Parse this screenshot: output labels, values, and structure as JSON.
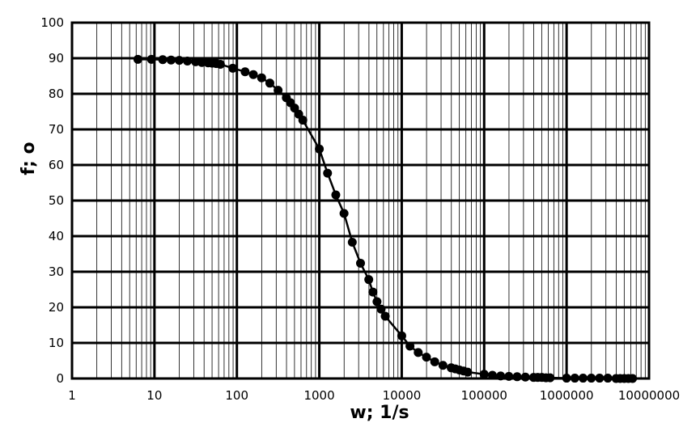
{
  "chart_data": {
    "type": "scatter",
    "xlabel": "w; 1/s",
    "ylabel": "f; o",
    "x_scale": "log",
    "xlim": [
      1,
      10000000
    ],
    "ylim": [
      0,
      100
    ],
    "y_ticks": [
      "0",
      "10",
      "20",
      "30",
      "40",
      "50",
      "60",
      "70",
      "80",
      "90",
      "100"
    ],
    "x_ticks": [
      "1",
      "10",
      "100",
      "1000",
      "10000",
      "100000",
      "1000000",
      "10000000"
    ],
    "grid": true,
    "marker": "circle",
    "line": "connected",
    "colors": {
      "series": "#000000",
      "grid": "#000000",
      "background": "#ffffff"
    },
    "series": [
      {
        "x": [
          6.3,
          9.2,
          12.6,
          15.9,
          20,
          25.1,
          31.6,
          37.6,
          44.7,
          50.1,
          56.2,
          63.1,
          89.1,
          125.9,
          158.5,
          199.5,
          251.2,
          316.2,
          398.1,
          446.7,
          501.2,
          562.3,
          631,
          1000,
          1259,
          1585,
          1995,
          2512,
          3162,
          3981,
          4467,
          5012,
          5623,
          6310,
          10000,
          12589,
          15849,
          19953,
          25119,
          31623,
          39811,
          44668,
          50119,
          56234,
          63096,
          100000,
          125893,
          158489,
          199526,
          251189,
          316228,
          398107,
          446684,
          501187,
          562341,
          630957,
          1000000,
          1258925,
          1584893,
          1995262,
          2511886,
          3162278,
          3981072,
          4466836,
          5011872,
          5623413,
          6309573
        ],
        "y": [
          89.7,
          89.7,
          89.6,
          89.5,
          89.4,
          89.2,
          89,
          88.8,
          88.7,
          88.6,
          88.5,
          88.3,
          87.2,
          86.2,
          85.4,
          84.5,
          83,
          81,
          78.9,
          77.5,
          76,
          74.3,
          72.6,
          64.5,
          57.7,
          51.6,
          46.4,
          38.3,
          32.4,
          27.8,
          24.3,
          21.6,
          19.5,
          17.5,
          12,
          9.1,
          7.3,
          6,
          4.7,
          3.7,
          3,
          2.7,
          2.4,
          2.1,
          1.8,
          1.2,
          0.9,
          0.7,
          0.6,
          0.5,
          0.4,
          0.3,
          0.3,
          0.3,
          0.2,
          0.2,
          0.1,
          0.1,
          0.1,
          0.1,
          0.1,
          0.1,
          0,
          0,
          0,
          0,
          0
        ]
      }
    ]
  }
}
